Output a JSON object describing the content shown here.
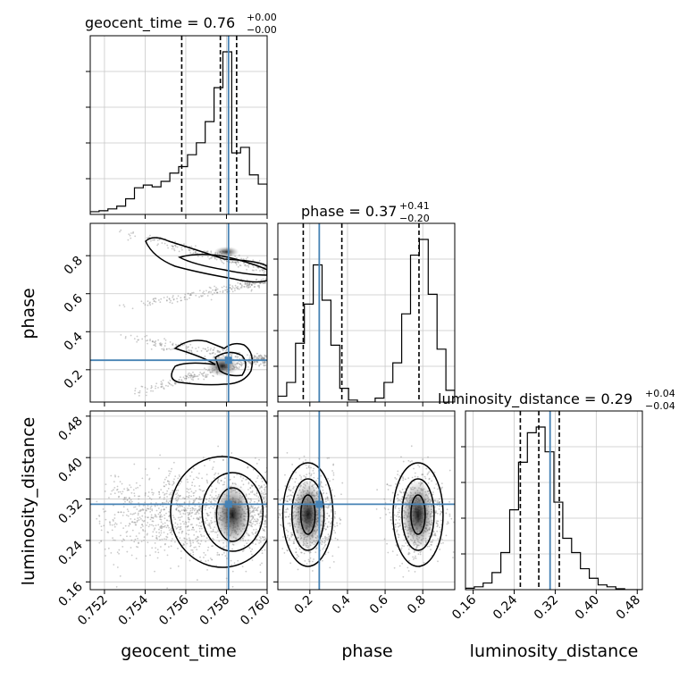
{
  "colors": {
    "truth": "#4682b4",
    "hist": "#000000",
    "grid": "#c8c8c8",
    "scatter": "#8a8a8a"
  },
  "chart_data": {
    "type": "corner",
    "parameters": [
      {
        "name": "geocent_time",
        "xlabel": "geocent_time",
        "ylabel": "",
        "range": [
          0.7513,
          0.76
        ],
        "truth": 0.7581,
        "ticks": [
          0.752,
          0.754,
          0.756,
          0.758,
          0.76
        ],
        "tick_labels": [
          "0.752",
          "0.754",
          "0.756",
          "0.758",
          "0.760"
        ],
        "title_main": "geocent_time = 0.76",
        "title_plus": "+0.00",
        "title_minus": "−0.00",
        "quantiles": [
          0.7558,
          0.7577,
          0.7585
        ],
        "hist_bins": [
          0.7513,
          0.76
        ],
        "hist": [
          0.3,
          0.4,
          0.6,
          0.9,
          1.7,
          2.9,
          3.2,
          3.0,
          3.6,
          4.5,
          5.2,
          6.5,
          7.8,
          10.1,
          13.8,
          17.7,
          6.7,
          7.3,
          4.3,
          3.3
        ]
      },
      {
        "name": "phase",
        "xlabel": "phase",
        "ylabel": "phase",
        "range": [
          0.03,
          0.97
        ],
        "truth": 0.25,
        "ticks": [
          0.2,
          0.4,
          0.6,
          0.8
        ],
        "tick_labels": [
          "0.2",
          "0.4",
          "0.6",
          "0.8"
        ],
        "title_main": "phase = 0.37",
        "title_plus": "+0.41",
        "title_minus": "−0.20",
        "quantiles": [
          0.165,
          0.37,
          0.78
        ],
        "hist_bins": [
          0.03,
          0.97
        ],
        "hist": [
          0.3,
          1.0,
          3.0,
          5.0,
          7.0,
          5.2,
          2.9,
          0.7,
          0.1,
          0.0,
          0.0,
          0.2,
          1.0,
          2.0,
          4.5,
          7.5,
          8.3,
          5.5,
          2.7,
          0.6
        ]
      },
      {
        "name": "luminosity_distance",
        "xlabel": "luminosity_distance",
        "ylabel": "luminosity_distance",
        "range": [
          0.145,
          0.49
        ],
        "truth": 0.31,
        "ticks": [
          0.16,
          0.24,
          0.32,
          0.4,
          0.48
        ],
        "tick_labels": [
          "0.16",
          "0.24",
          "0.32",
          "0.40",
          "0.48"
        ],
        "title_main": "luminosity_distance = 0.29",
        "title_plus": "+0.04",
        "title_minus": "−0.04",
        "quantiles": [
          0.252,
          0.288,
          0.328
        ],
        "hist_bins": [
          0.145,
          0.49
        ],
        "hist": [
          0.15,
          0.3,
          0.7,
          1.8,
          3.9,
          8.4,
          13.4,
          16.5,
          17.1,
          14.5,
          9.2,
          5.4,
          3.9,
          2.2,
          1.2,
          0.5,
          0.3,
          0.1,
          0.0,
          0.0
        ]
      }
    ],
    "grid": true,
    "note_geocent_hist": "histogram counts normalized to panel"
  }
}
